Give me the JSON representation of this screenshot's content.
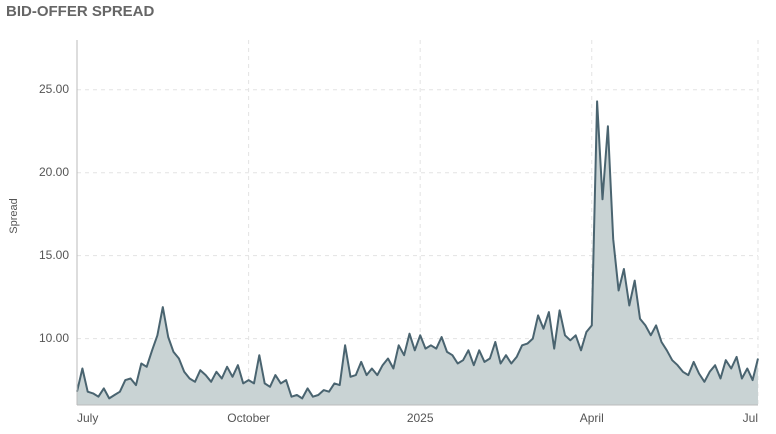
{
  "chart_data": {
    "type": "area",
    "title": "BID-OFFER SPREAD",
    "y_label": "Spread",
    "categories": [
      "July",
      null,
      null,
      null,
      null,
      null,
      null,
      null,
      null,
      null,
      null,
      null,
      null,
      null,
      null,
      null,
      null,
      null,
      null,
      null,
      null,
      null,
      null,
      null,
      null,
      null,
      null,
      null,
      null,
      null,
      null,
      null,
      "October",
      null,
      null,
      null,
      null,
      null,
      null,
      null,
      null,
      null,
      null,
      null,
      null,
      null,
      null,
      null,
      null,
      null,
      null,
      null,
      null,
      null,
      null,
      null,
      null,
      null,
      null,
      null,
      null,
      null,
      null,
      null,
      "2025",
      null,
      null,
      null,
      null,
      null,
      null,
      null,
      null,
      null,
      null,
      null,
      null,
      null,
      null,
      null,
      null,
      null,
      null,
      null,
      null,
      null,
      null,
      null,
      null,
      null,
      null,
      null,
      null,
      null,
      null,
      null,
      "April",
      null,
      null,
      null,
      null,
      null,
      null,
      null,
      null,
      null,
      null,
      null,
      null,
      null,
      null,
      null,
      null,
      null,
      null,
      null,
      null,
      null,
      null,
      null,
      null,
      null,
      null,
      null,
      null,
      null,
      null,
      "Jul"
    ],
    "values": [
      6.8,
      8.2,
      6.8,
      6.7,
      6.5,
      7.0,
      6.4,
      6.6,
      6.8,
      7.5,
      7.6,
      7.2,
      8.5,
      8.3,
      9.3,
      10.2,
      11.9,
      10.1,
      9.2,
      8.8,
      8.0,
      7.6,
      7.4,
      8.1,
      7.8,
      7.4,
      8.0,
      7.6,
      8.3,
      7.7,
      8.4,
      7.3,
      7.5,
      7.3,
      9.0,
      7.3,
      7.1,
      7.8,
      7.3,
      7.5,
      6.5,
      6.6,
      6.4,
      7.0,
      6.5,
      6.6,
      6.9,
      6.8,
      7.3,
      7.2,
      9.6,
      7.7,
      7.8,
      8.6,
      7.8,
      8.2,
      7.8,
      8.4,
      8.8,
      8.2,
      9.6,
      9.0,
      10.3,
      9.3,
      10.2,
      9.4,
      9.6,
      9.4,
      10.1,
      9.2,
      9.0,
      8.5,
      8.7,
      9.3,
      8.4,
      9.3,
      8.6,
      8.8,
      9.8,
      8.5,
      9.0,
      8.5,
      8.9,
      9.6,
      9.7,
      10.0,
      11.4,
      10.6,
      11.6,
      9.4,
      11.7,
      10.2,
      9.9,
      10.2,
      9.3,
      10.4,
      10.8,
      24.3,
      18.4,
      22.8,
      16.0,
      12.9,
      14.2,
      12.0,
      13.5,
      11.2,
      10.8,
      10.2,
      10.8,
      9.8,
      9.3,
      8.7,
      8.4,
      8.0,
      7.8,
      8.6,
      7.9,
      7.4,
      8.0,
      8.4,
      7.6,
      8.7,
      8.2,
      8.9,
      7.6,
      8.2,
      7.5,
      8.8
    ],
    "color": "#4a6470",
    "fill": "#c9d3d4",
    "ylim": [
      6,
      28
    ],
    "yticks": [
      {
        "value": 10,
        "label": "10.00"
      },
      {
        "value": 15,
        "label": "15.00"
      },
      {
        "value": 20,
        "label": "20.00"
      },
      {
        "value": 25,
        "label": "25.00"
      }
    ],
    "grid": true
  }
}
